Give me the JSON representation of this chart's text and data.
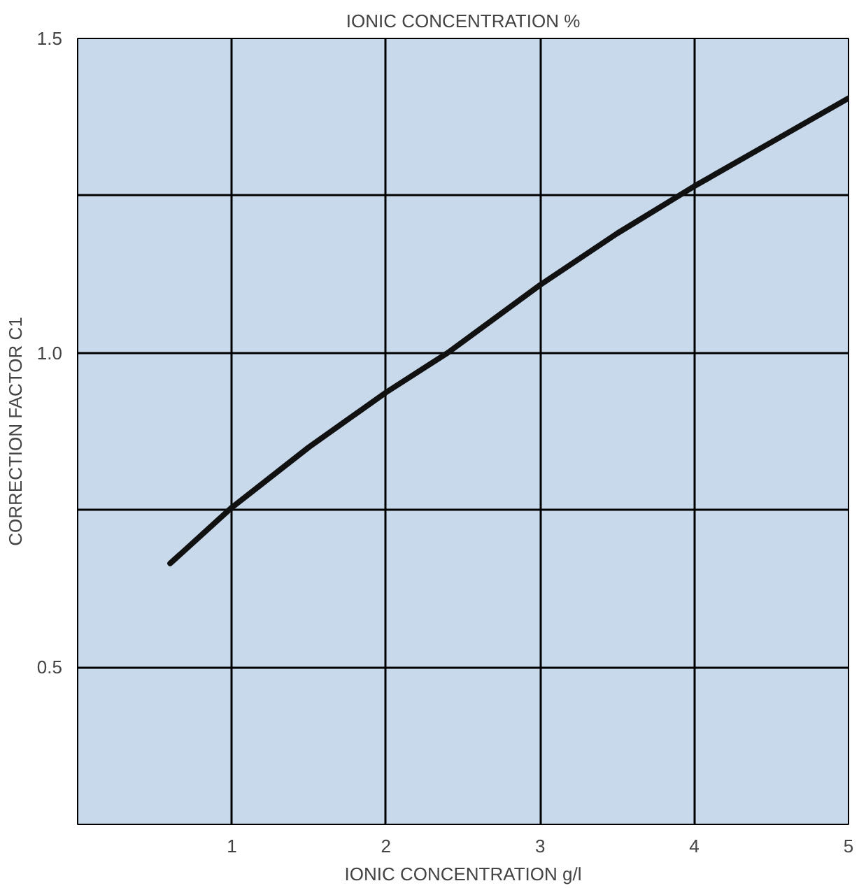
{
  "chart_data": {
    "type": "line",
    "title": "IONIC CONCENTRATION %",
    "xlabel": "IONIC CONCENTRATION g/l",
    "ylabel": "CORRECTION FACTOR C1",
    "x": [
      0.6,
      1,
      1.5,
      2,
      2.4,
      3,
      3.5,
      4,
      4.5,
      5
    ],
    "series": [
      {
        "color": "#111111",
        "values": [
          0.665,
          0.754,
          0.85,
          0.937,
          1.0,
          1.108,
          1.19,
          1.265,
          1.335,
          1.405
        ]
      }
    ],
    "xlim": [
      0,
      5
    ],
    "ylim": [
      0.25,
      1.5
    ],
    "xticks": [
      1,
      2,
      3,
      4,
      5
    ],
    "yticks": [
      {
        "value": 0.5,
        "label": "0.5"
      },
      {
        "value": 0.75,
        "label": null
      },
      {
        "value": 1.0,
        "label": "1.0"
      },
      {
        "value": 1.25,
        "label": null
      },
      {
        "value": 1.5,
        "label": "1.5"
      }
    ],
    "grid": true,
    "marker": "none",
    "line_style": "solid"
  }
}
